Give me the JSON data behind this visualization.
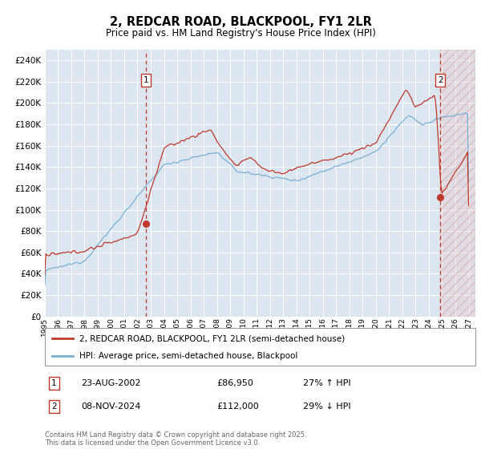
{
  "title": "2, REDCAR ROAD, BLACKPOOL, FY1 2LR",
  "subtitle": "Price paid vs. HM Land Registry's House Price Index (HPI)",
  "xlim_start": 1995.0,
  "xlim_end": 2027.5,
  "ylim_min": 0,
  "ylim_max": 250000,
  "yticks": [
    0,
    20000,
    40000,
    60000,
    80000,
    100000,
    120000,
    140000,
    160000,
    180000,
    200000,
    220000,
    240000
  ],
  "background_color": "#dce6f1",
  "hpi_color": "#7ab0d4",
  "price_color": "#c0392b",
  "marker1_date": 2002.64,
  "marker1_price": 86950,
  "marker1_label": "1",
  "marker1_text": "23-AUG-2002",
  "marker1_amount": "£86,950",
  "marker1_hpi": "27% ↑ HPI",
  "marker2_date": 2024.86,
  "marker2_price": 112000,
  "marker2_label": "2",
  "marker2_text": "08-NOV-2024",
  "marker2_amount": "£112,000",
  "marker2_hpi": "29% ↓ HPI",
  "legend_line1": "2, REDCAR ROAD, BLACKPOOL, FY1 2LR (semi-detached house)",
  "legend_line2": "HPI: Average price, semi-detached house, Blackpool",
  "footnote": "Contains HM Land Registry data © Crown copyright and database right 2025.\nThis data is licensed under the Open Government Licence v3.0."
}
